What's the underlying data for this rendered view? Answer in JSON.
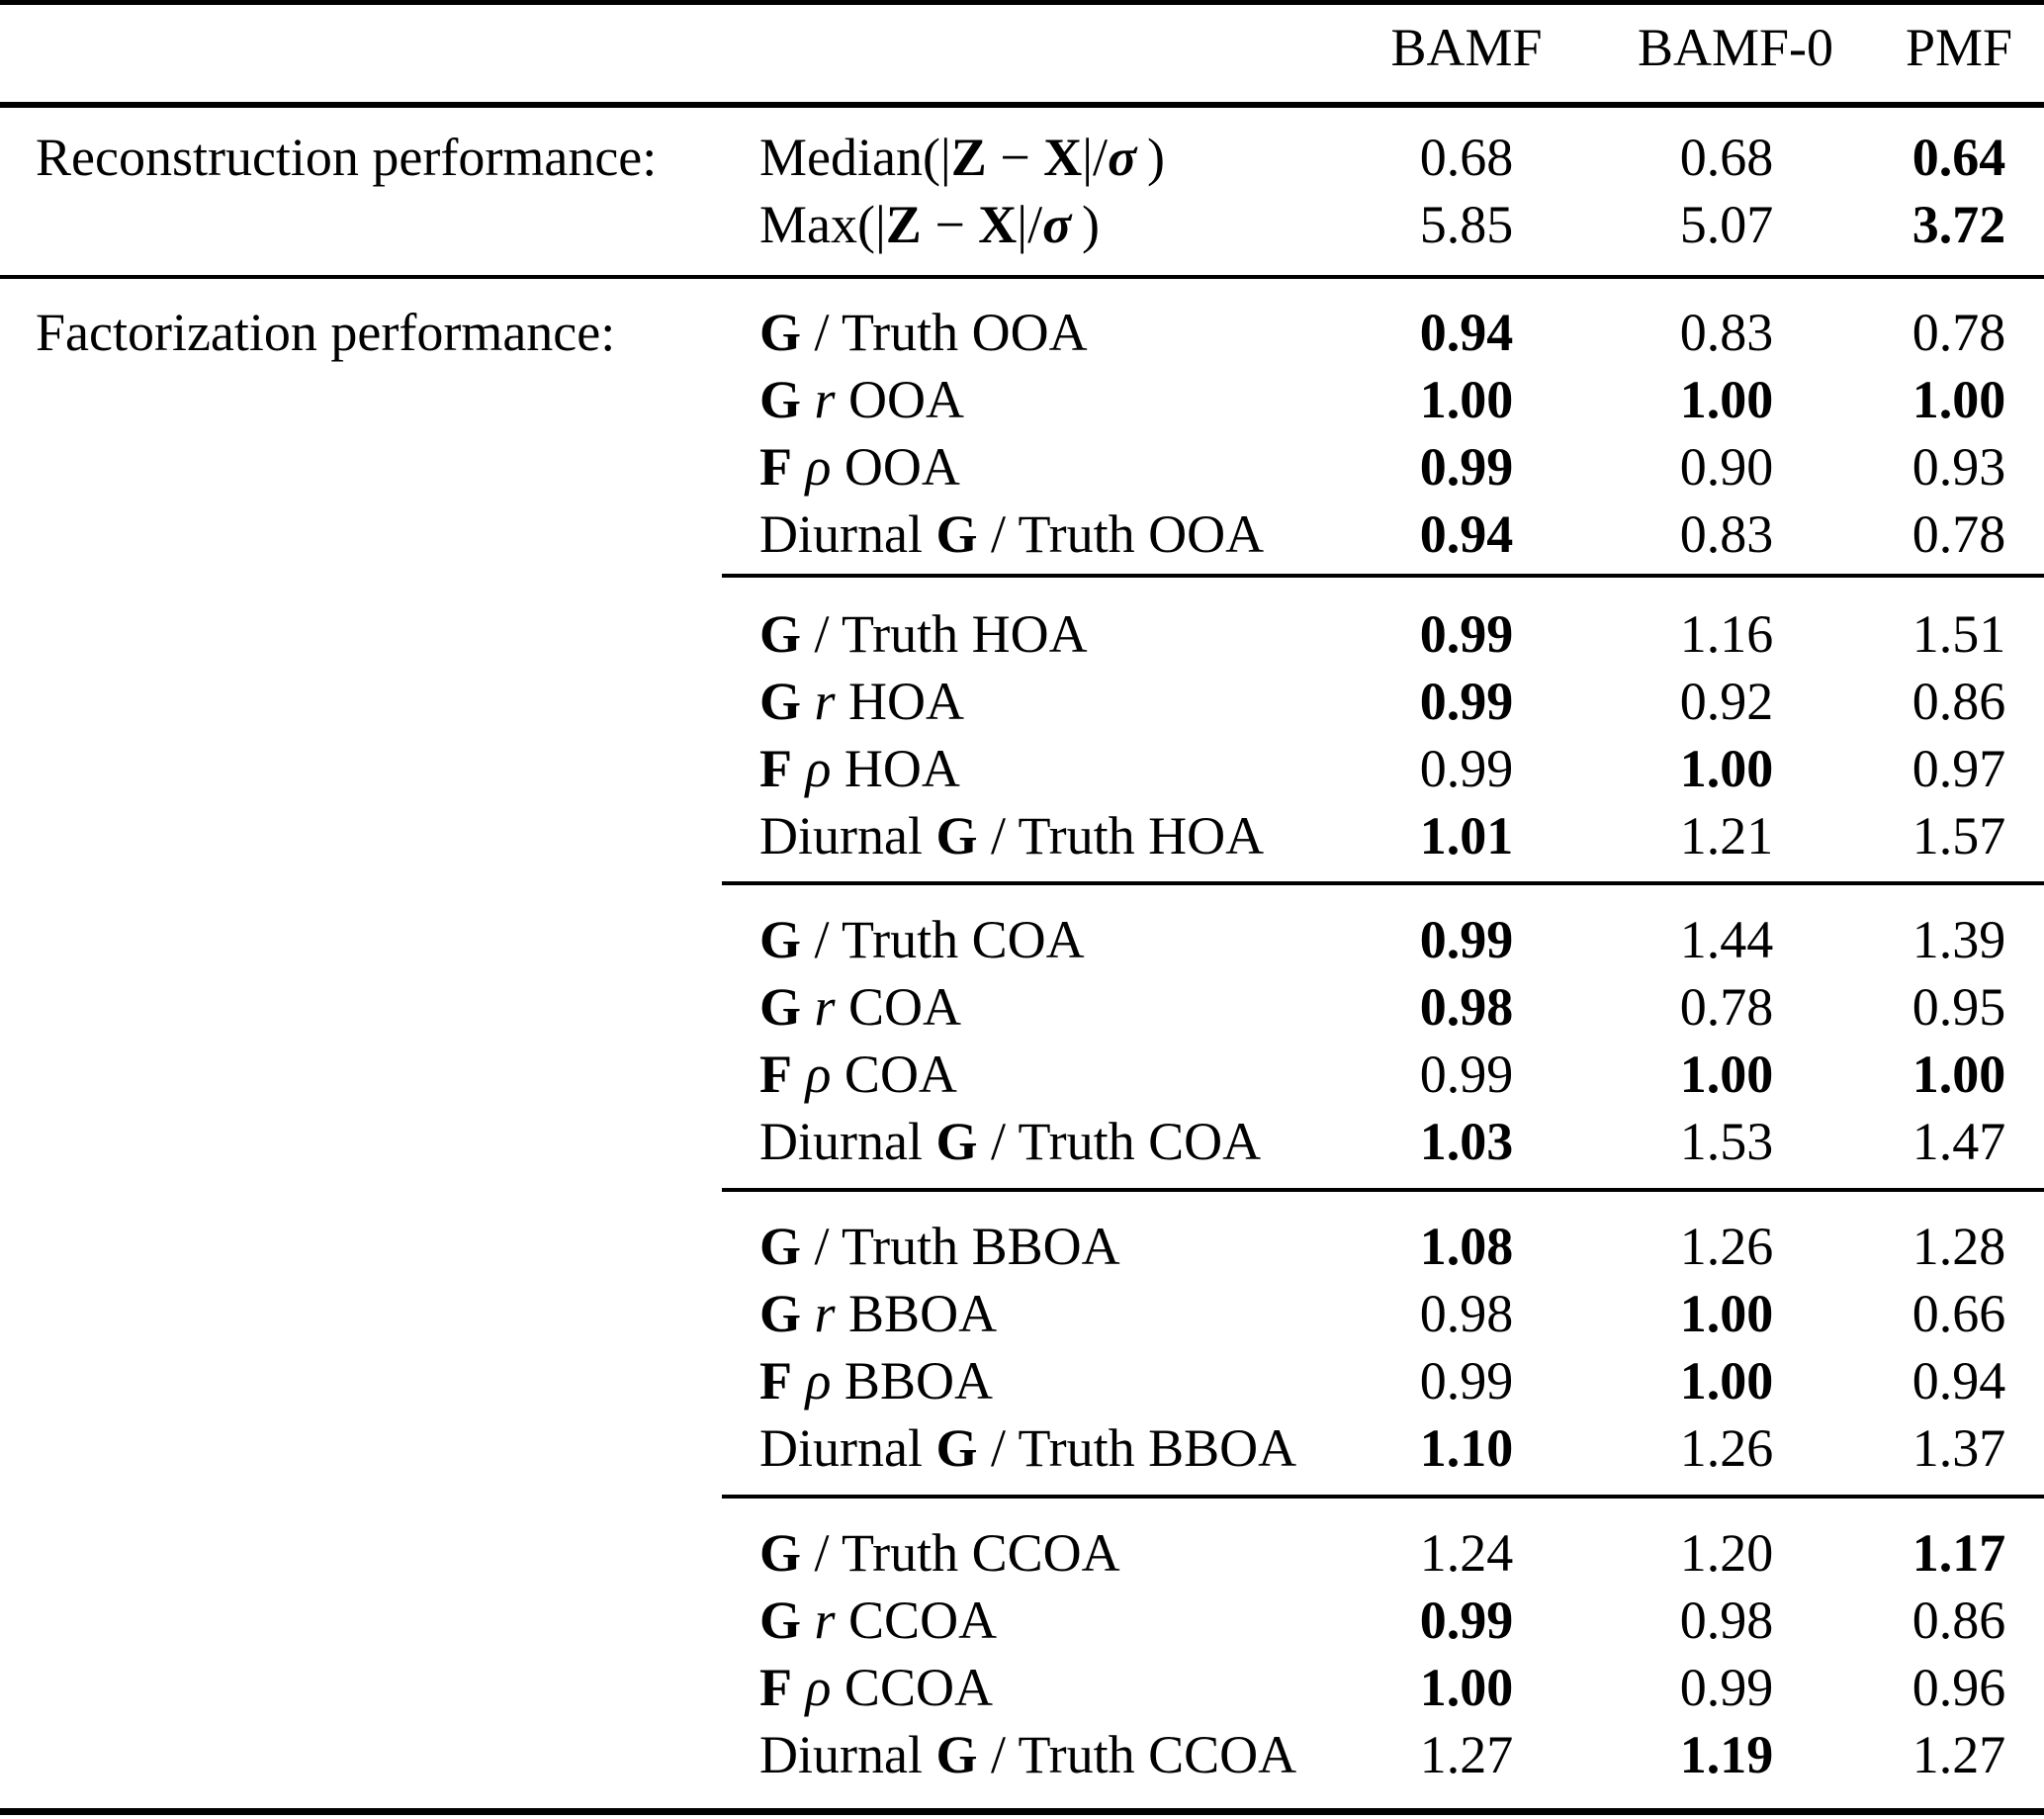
{
  "table": {
    "header": {
      "columns": [
        "BAMF",
        "BAMF-0",
        "PMF"
      ]
    },
    "sections": [
      {
        "label": "Reconstruction performance:",
        "groups": [
          {
            "rows": [
              {
                "label_parts": [
                  {
                    "t": "Median(|"
                  },
                  {
                    "t": "Z",
                    "b": 1
                  },
                  {
                    "t": " − "
                  },
                  {
                    "t": "X",
                    "b": 1
                  },
                  {
                    "t": "|/"
                  },
                  {
                    "t": "σ",
                    "b": 1,
                    "i": 1
                  },
                  {
                    "t": " )"
                  }
                ],
                "values": [
                  {
                    "v": "0.68"
                  },
                  {
                    "v": "0.68"
                  },
                  {
                    "v": "0.64",
                    "b": 1
                  }
                ]
              },
              {
                "label_parts": [
                  {
                    "t": "Max(|"
                  },
                  {
                    "t": "Z",
                    "b": 1
                  },
                  {
                    "t": " − "
                  },
                  {
                    "t": "X",
                    "b": 1
                  },
                  {
                    "t": "|/"
                  },
                  {
                    "t": "σ",
                    "b": 1,
                    "i": 1
                  },
                  {
                    "t": " )"
                  }
                ],
                "values": [
                  {
                    "v": "5.85"
                  },
                  {
                    "v": "5.07"
                  },
                  {
                    "v": "3.72",
                    "b": 1
                  }
                ]
              }
            ]
          }
        ]
      },
      {
        "label": "Factorization performance:",
        "groups": [
          {
            "rows": [
              {
                "label_parts": [
                  {
                    "t": "G",
                    "b": 1
                  },
                  {
                    "t": " / Truth OOA"
                  }
                ],
                "values": [
                  {
                    "v": "0.94",
                    "b": 1
                  },
                  {
                    "v": "0.83"
                  },
                  {
                    "v": "0.78"
                  }
                ]
              },
              {
                "label_parts": [
                  {
                    "t": "G",
                    "b": 1
                  },
                  {
                    "t": " "
                  },
                  {
                    "t": "r",
                    "i": 1
                  },
                  {
                    "t": " OOA"
                  }
                ],
                "values": [
                  {
                    "v": "1.00",
                    "b": 1
                  },
                  {
                    "v": "1.00",
                    "b": 1
                  },
                  {
                    "v": "1.00",
                    "b": 1
                  }
                ]
              },
              {
                "label_parts": [
                  {
                    "t": "F",
                    "b": 1
                  },
                  {
                    "t": " "
                  },
                  {
                    "t": "ρ",
                    "i": 1
                  },
                  {
                    "t": " OOA"
                  }
                ],
                "values": [
                  {
                    "v": "0.99",
                    "b": 1
                  },
                  {
                    "v": "0.90"
                  },
                  {
                    "v": "0.93"
                  }
                ]
              },
              {
                "label_parts": [
                  {
                    "t": "Diurnal "
                  },
                  {
                    "t": "G",
                    "b": 1
                  },
                  {
                    "t": " / Truth OOA"
                  }
                ],
                "values": [
                  {
                    "v": "0.94",
                    "b": 1
                  },
                  {
                    "v": "0.83"
                  },
                  {
                    "v": "0.78"
                  }
                ]
              }
            ]
          },
          {
            "rows": [
              {
                "label_parts": [
                  {
                    "t": "G",
                    "b": 1
                  },
                  {
                    "t": " / Truth HOA"
                  }
                ],
                "values": [
                  {
                    "v": "0.99",
                    "b": 1
                  },
                  {
                    "v": "1.16"
                  },
                  {
                    "v": "1.51"
                  }
                ]
              },
              {
                "label_parts": [
                  {
                    "t": "G",
                    "b": 1
                  },
                  {
                    "t": " "
                  },
                  {
                    "t": "r",
                    "i": 1
                  },
                  {
                    "t": " HOA"
                  }
                ],
                "values": [
                  {
                    "v": "0.99",
                    "b": 1
                  },
                  {
                    "v": "0.92"
                  },
                  {
                    "v": "0.86"
                  }
                ]
              },
              {
                "label_parts": [
                  {
                    "t": "F",
                    "b": 1
                  },
                  {
                    "t": " "
                  },
                  {
                    "t": "ρ",
                    "i": 1
                  },
                  {
                    "t": " HOA"
                  }
                ],
                "values": [
                  {
                    "v": "0.99"
                  },
                  {
                    "v": "1.00",
                    "b": 1
                  },
                  {
                    "v": "0.97"
                  }
                ]
              },
              {
                "label_parts": [
                  {
                    "t": "Diurnal "
                  },
                  {
                    "t": "G",
                    "b": 1
                  },
                  {
                    "t": " / Truth HOA"
                  }
                ],
                "values": [
                  {
                    "v": "1.01",
                    "b": 1
                  },
                  {
                    "v": "1.21"
                  },
                  {
                    "v": "1.57"
                  }
                ]
              }
            ]
          },
          {
            "rows": [
              {
                "label_parts": [
                  {
                    "t": "G",
                    "b": 1
                  },
                  {
                    "t": " / Truth COA"
                  }
                ],
                "values": [
                  {
                    "v": "0.99",
                    "b": 1
                  },
                  {
                    "v": "1.44"
                  },
                  {
                    "v": "1.39"
                  }
                ]
              },
              {
                "label_parts": [
                  {
                    "t": "G",
                    "b": 1
                  },
                  {
                    "t": " "
                  },
                  {
                    "t": "r",
                    "i": 1
                  },
                  {
                    "t": " COA"
                  }
                ],
                "values": [
                  {
                    "v": "0.98",
                    "b": 1
                  },
                  {
                    "v": "0.78"
                  },
                  {
                    "v": "0.95"
                  }
                ]
              },
              {
                "label_parts": [
                  {
                    "t": "F",
                    "b": 1
                  },
                  {
                    "t": " "
                  },
                  {
                    "t": "ρ",
                    "i": 1
                  },
                  {
                    "t": " COA"
                  }
                ],
                "values": [
                  {
                    "v": "0.99"
                  },
                  {
                    "v": "1.00",
                    "b": 1
                  },
                  {
                    "v": "1.00",
                    "b": 1
                  }
                ]
              },
              {
                "label_parts": [
                  {
                    "t": "Diurnal "
                  },
                  {
                    "t": "G",
                    "b": 1
                  },
                  {
                    "t": " / Truth COA"
                  }
                ],
                "values": [
                  {
                    "v": "1.03",
                    "b": 1
                  },
                  {
                    "v": "1.53"
                  },
                  {
                    "v": "1.47"
                  }
                ]
              }
            ]
          },
          {
            "rows": [
              {
                "label_parts": [
                  {
                    "t": "G",
                    "b": 1
                  },
                  {
                    "t": " / Truth BBOA"
                  }
                ],
                "values": [
                  {
                    "v": "1.08",
                    "b": 1
                  },
                  {
                    "v": "1.26"
                  },
                  {
                    "v": "1.28"
                  }
                ]
              },
              {
                "label_parts": [
                  {
                    "t": "G",
                    "b": 1
                  },
                  {
                    "t": " "
                  },
                  {
                    "t": "r",
                    "i": 1
                  },
                  {
                    "t": " BBOA"
                  }
                ],
                "values": [
                  {
                    "v": "0.98"
                  },
                  {
                    "v": "1.00",
                    "b": 1
                  },
                  {
                    "v": "0.66"
                  }
                ]
              },
              {
                "label_parts": [
                  {
                    "t": "F",
                    "b": 1
                  },
                  {
                    "t": " "
                  },
                  {
                    "t": "ρ",
                    "i": 1
                  },
                  {
                    "t": " BBOA"
                  }
                ],
                "values": [
                  {
                    "v": "0.99"
                  },
                  {
                    "v": "1.00",
                    "b": 1
                  },
                  {
                    "v": "0.94"
                  }
                ]
              },
              {
                "label_parts": [
                  {
                    "t": "Diurnal "
                  },
                  {
                    "t": "G",
                    "b": 1
                  },
                  {
                    "t": " / Truth BBOA"
                  }
                ],
                "values": [
                  {
                    "v": "1.10",
                    "b": 1
                  },
                  {
                    "v": "1.26"
                  },
                  {
                    "v": "1.37"
                  }
                ]
              }
            ]
          },
          {
            "rows": [
              {
                "label_parts": [
                  {
                    "t": "G",
                    "b": 1
                  },
                  {
                    "t": " / Truth CCOA"
                  }
                ],
                "values": [
                  {
                    "v": "1.24"
                  },
                  {
                    "v": "1.20"
                  },
                  {
                    "v": "1.17",
                    "b": 1
                  }
                ]
              },
              {
                "label_parts": [
                  {
                    "t": "G",
                    "b": 1
                  },
                  {
                    "t": " "
                  },
                  {
                    "t": "r",
                    "i": 1
                  },
                  {
                    "t": " CCOA"
                  }
                ],
                "values": [
                  {
                    "v": "0.99",
                    "b": 1
                  },
                  {
                    "v": "0.98"
                  },
                  {
                    "v": "0.86"
                  }
                ]
              },
              {
                "label_parts": [
                  {
                    "t": "F",
                    "b": 1
                  },
                  {
                    "t": " "
                  },
                  {
                    "t": "ρ",
                    "i": 1
                  },
                  {
                    "t": " CCOA"
                  }
                ],
                "values": [
                  {
                    "v": "1.00",
                    "b": 1
                  },
                  {
                    "v": "0.99"
                  },
                  {
                    "v": "0.96"
                  }
                ]
              },
              {
                "label_parts": [
                  {
                    "t": "Diurnal "
                  },
                  {
                    "t": "G",
                    "b": 1
                  },
                  {
                    "t": " / Truth CCOA"
                  }
                ],
                "values": [
                  {
                    "v": "1.27"
                  },
                  {
                    "v": "1.19",
                    "b": 1
                  },
                  {
                    "v": "1.27"
                  }
                ]
              }
            ]
          }
        ]
      }
    ]
  }
}
